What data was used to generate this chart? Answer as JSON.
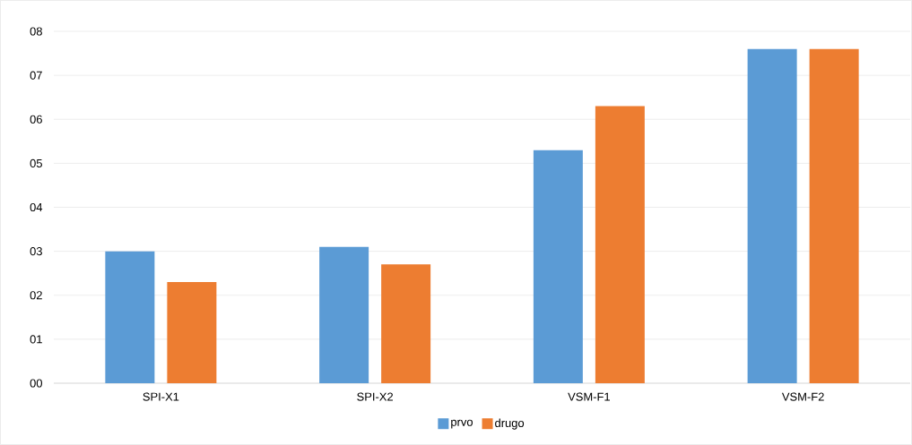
{
  "chart_data": {
    "type": "bar",
    "categories": [
      "SPI-X1",
      "SPI-X2",
      "VSM-F1",
      "VSM-F2"
    ],
    "series": [
      {
        "name": "prvo",
        "color": "#5b9bd5",
        "values": [
          3.0,
          3.1,
          5.3,
          7.6
        ]
      },
      {
        "name": "drugo",
        "color": "#ed7d31",
        "values": [
          2.3,
          2.7,
          6.3,
          7.6
        ]
      }
    ],
    "ylim": [
      0,
      8
    ],
    "yticks": [
      {
        "value": 0,
        "label": "00"
      },
      {
        "value": 1,
        "label": "01"
      },
      {
        "value": 2,
        "label": "02"
      },
      {
        "value": 3,
        "label": "03"
      },
      {
        "value": 4,
        "label": "04"
      },
      {
        "value": 5,
        "label": "05"
      },
      {
        "value": 6,
        "label": "06"
      },
      {
        "value": 7,
        "label": "07"
      },
      {
        "value": 8,
        "label": "08"
      }
    ],
    "grid": "y",
    "legend": "bottom"
  }
}
